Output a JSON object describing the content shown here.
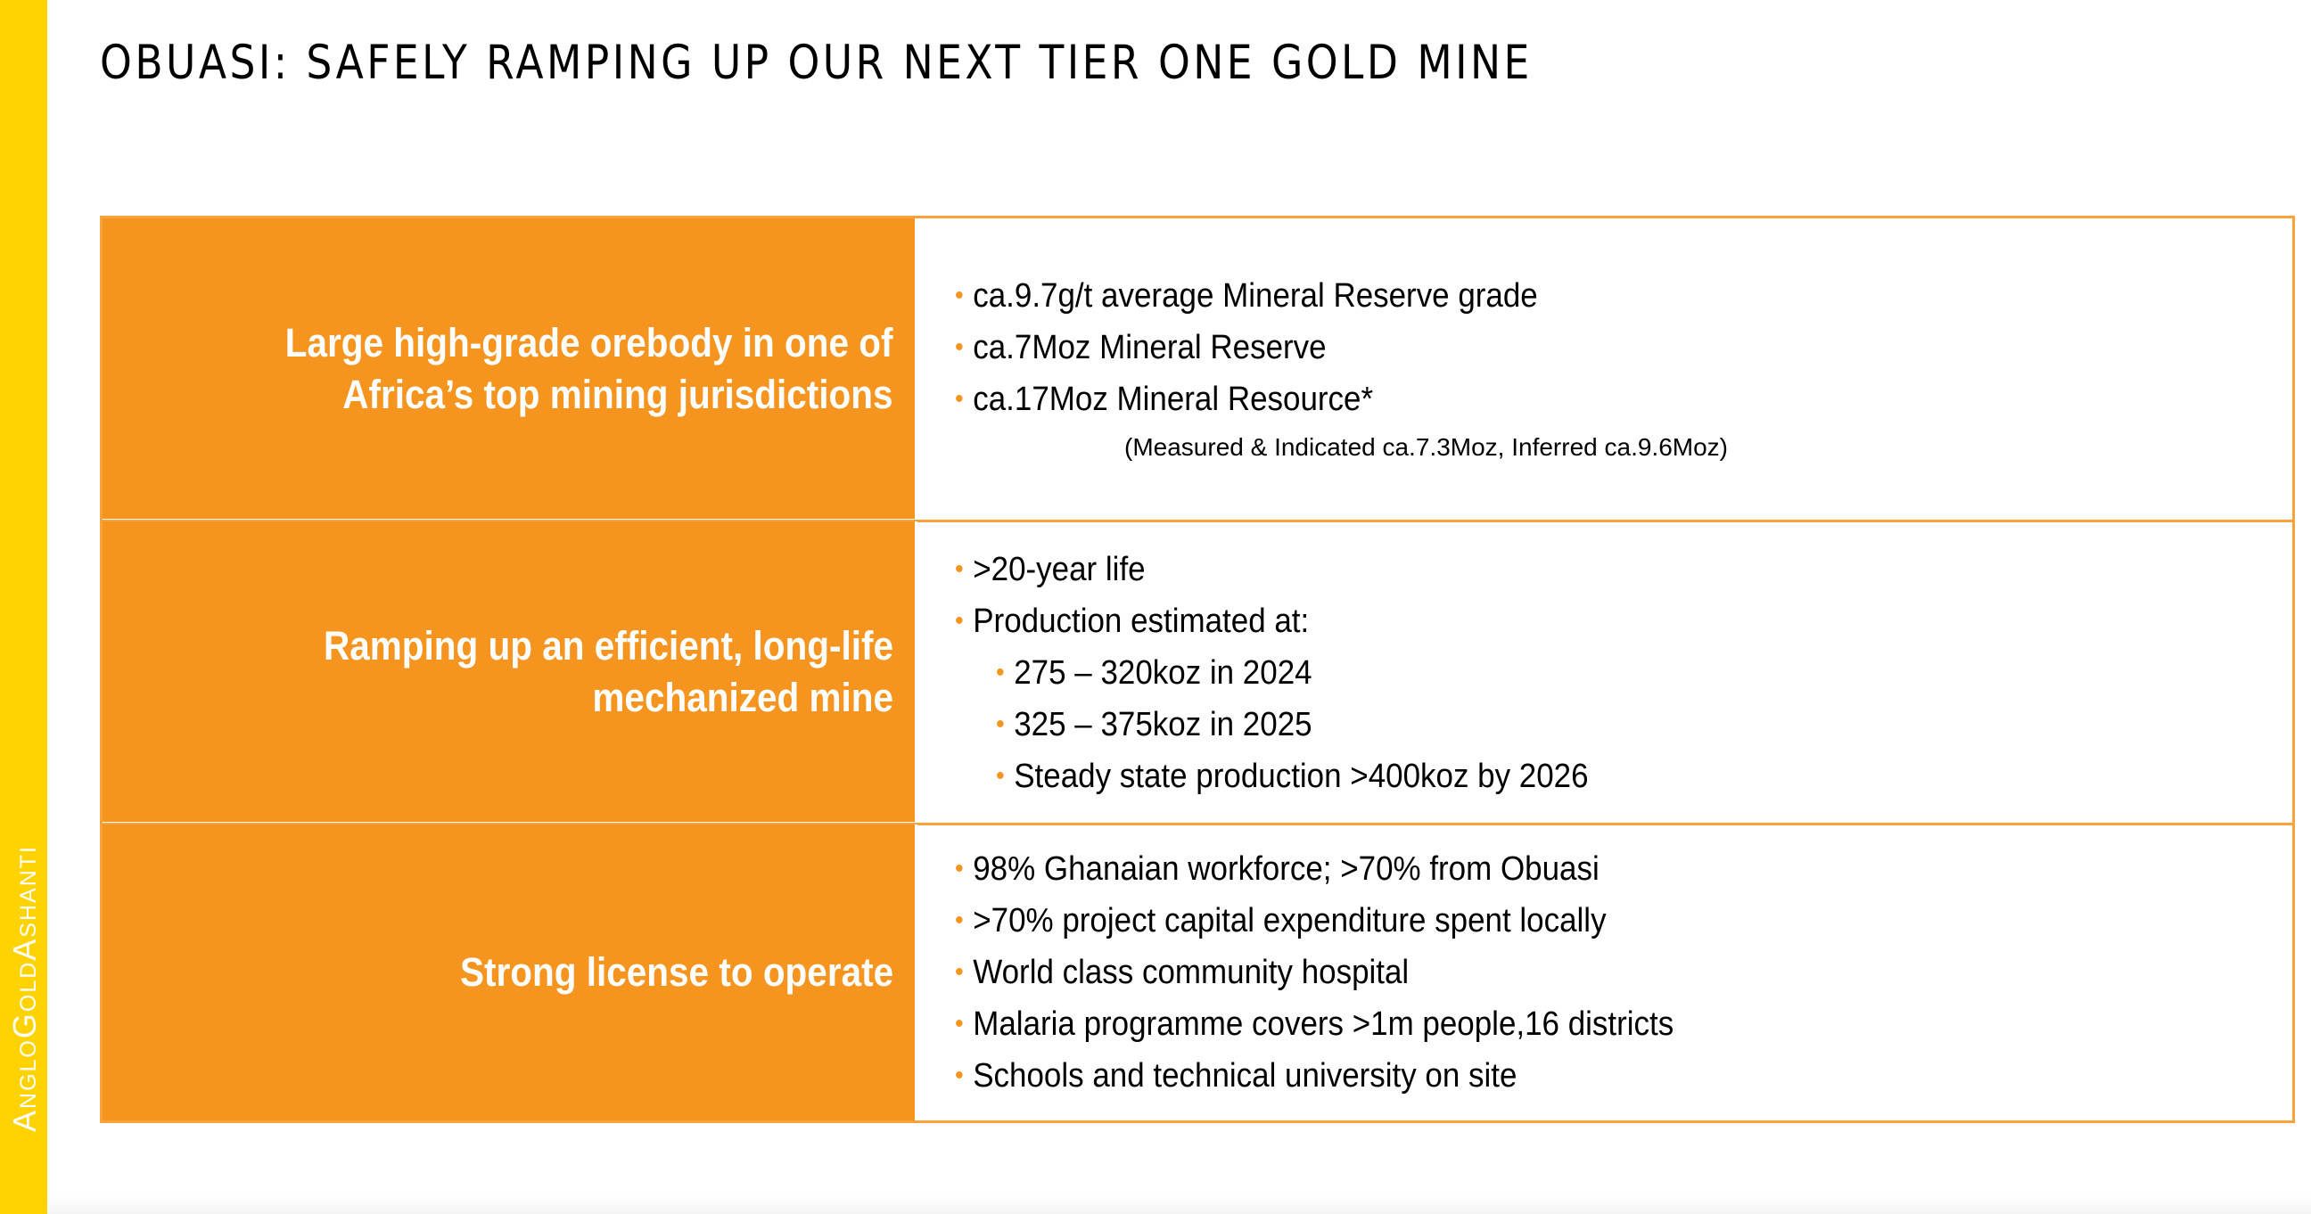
{
  "brand": {
    "logo_text": "AngloGoldAshanti",
    "accent_color": "#FFD200",
    "orange_color": "#F5941E"
  },
  "slide": {
    "title": "OBUASI: SAFELY RAMPING UP OUR NEXT TIER ONE GOLD MINE"
  },
  "rows": [
    {
      "heading_line1": "Large high-grade orebody in one of",
      "heading_line2": "Africa’s top mining jurisdictions",
      "bullets": [
        "ca.9.7g/t average Mineral Reserve grade",
        "ca.7Moz Mineral Reserve",
        "ca.17Moz Mineral Resource*"
      ],
      "note": "(Measured & Indicated ca.7.3Moz, Inferred ca.9.6Moz)"
    },
    {
      "heading_line1": "Ramping up an efficient, long-life",
      "heading_line2": "mechanized mine",
      "bullets": [
        ">20-year life",
        "Production estimated at:"
      ],
      "sub_bullets": [
        "275 – 320koz in 2024",
        "325 – 375koz in 2025",
        "Steady state production >400koz by 2026"
      ]
    },
    {
      "heading_line1": "Strong license to operate",
      "bullets": [
        "98% Ghanaian workforce; >70% from Obuasi",
        ">70% project capital expenditure spent locally",
        "World class community hospital",
        "Malaria programme covers >1m people,16 districts",
        "Schools and technical university on site"
      ]
    }
  ]
}
